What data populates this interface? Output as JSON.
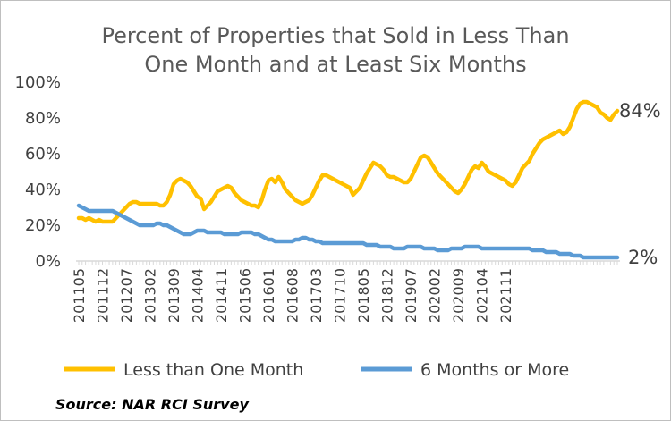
{
  "title_lines": [
    "Percent of Properties that Sold in Less Than",
    "One Month and at Least Six Months"
  ],
  "source": "Source: NAR RCI Survey",
  "colors": {
    "series1": "#FFC000",
    "series2": "#5B9BD5",
    "axis": "#D9D9D9",
    "frame": "#BFBFBF"
  },
  "chart_data": {
    "type": "line",
    "title": "Percent of Properties that Sold in Less Than One Month and at Least Six Months",
    "ylim": [
      0,
      100
    ],
    "y_ticks": [
      "0%",
      "20%",
      "40%",
      "60%",
      "80%",
      "100%"
    ],
    "x_start": "2011-05",
    "x_tick_labels": [
      "201105",
      "201112",
      "201207",
      "201302",
      "201309",
      "201404",
      "201411",
      "201506",
      "201601",
      "201608",
      "201703",
      "201710",
      "201805",
      "201812",
      "201907",
      "202002",
      "202009",
      "202104",
      "202111"
    ],
    "grid": false,
    "legend": "bottom",
    "series": [
      {
        "name": "Less than One Month",
        "end_label": "84%",
        "values": [
          24,
          24,
          23,
          24,
          23,
          22,
          23,
          22,
          22,
          22,
          22,
          24,
          26,
          28,
          30,
          32,
          33,
          33,
          32,
          32,
          32,
          32,
          32,
          32,
          31,
          31,
          33,
          37,
          43,
          45,
          46,
          45,
          44,
          42,
          39,
          36,
          35,
          29,
          31,
          33,
          36,
          39,
          40,
          41,
          42,
          41,
          38,
          36,
          34,
          33,
          32,
          31,
          31,
          30,
          34,
          40,
          45,
          46,
          44,
          47,
          44,
          40,
          38,
          36,
          34,
          33,
          32,
          33,
          34,
          37,
          41,
          45,
          48,
          48,
          47,
          46,
          45,
          44,
          43,
          42,
          41,
          37,
          39,
          41,
          45,
          49,
          52,
          55,
          54,
          53,
          51,
          48,
          47,
          47,
          46,
          45,
          44,
          44,
          46,
          50,
          54,
          58,
          59,
          58,
          55,
          52,
          49,
          47,
          45,
          43,
          41,
          39,
          38,
          40,
          43,
          47,
          51,
          53,
          52,
          55,
          53,
          50,
          49,
          48,
          47,
          46,
          45,
          43,
          42,
          44,
          48,
          52,
          54,
          56,
          60,
          63,
          66,
          68,
          69,
          70,
          71,
          72,
          73,
          71,
          72,
          75,
          80,
          85,
          88,
          89,
          89,
          88,
          87,
          86,
          83,
          82,
          80,
          79,
          82,
          84
        ]
      },
      {
        "name": "6 Months or More",
        "end_label": "2%",
        "values": [
          31,
          30,
          29,
          28,
          28,
          28,
          28,
          28,
          28,
          28,
          28,
          27,
          26,
          25,
          24,
          23,
          22,
          21,
          20,
          20,
          20,
          20,
          20,
          21,
          21,
          20,
          20,
          19,
          18,
          17,
          16,
          15,
          15,
          15,
          16,
          17,
          17,
          17,
          16,
          16,
          16,
          16,
          16,
          15,
          15,
          15,
          15,
          15,
          16,
          16,
          16,
          16,
          15,
          15,
          14,
          13,
          12,
          12,
          11,
          11,
          11,
          11,
          11,
          11,
          12,
          12,
          13,
          13,
          12,
          12,
          11,
          11,
          10,
          10,
          10,
          10,
          10,
          10,
          10,
          10,
          10,
          10,
          10,
          10,
          10,
          9,
          9,
          9,
          9,
          8,
          8,
          8,
          8,
          7,
          7,
          7,
          7,
          8,
          8,
          8,
          8,
          8,
          7,
          7,
          7,
          7,
          6,
          6,
          6,
          6,
          7,
          7,
          7,
          7,
          8,
          8,
          8,
          8,
          8,
          7,
          7,
          7,
          7,
          7,
          7,
          7,
          7,
          7,
          7,
          7,
          7,
          7,
          7,
          7,
          6,
          6,
          6,
          6,
          5,
          5,
          5,
          5,
          4,
          4,
          4,
          4,
          3,
          3,
          3,
          2,
          2,
          2,
          2,
          2,
          2,
          2,
          2,
          2,
          2,
          2
        ]
      }
    ]
  }
}
